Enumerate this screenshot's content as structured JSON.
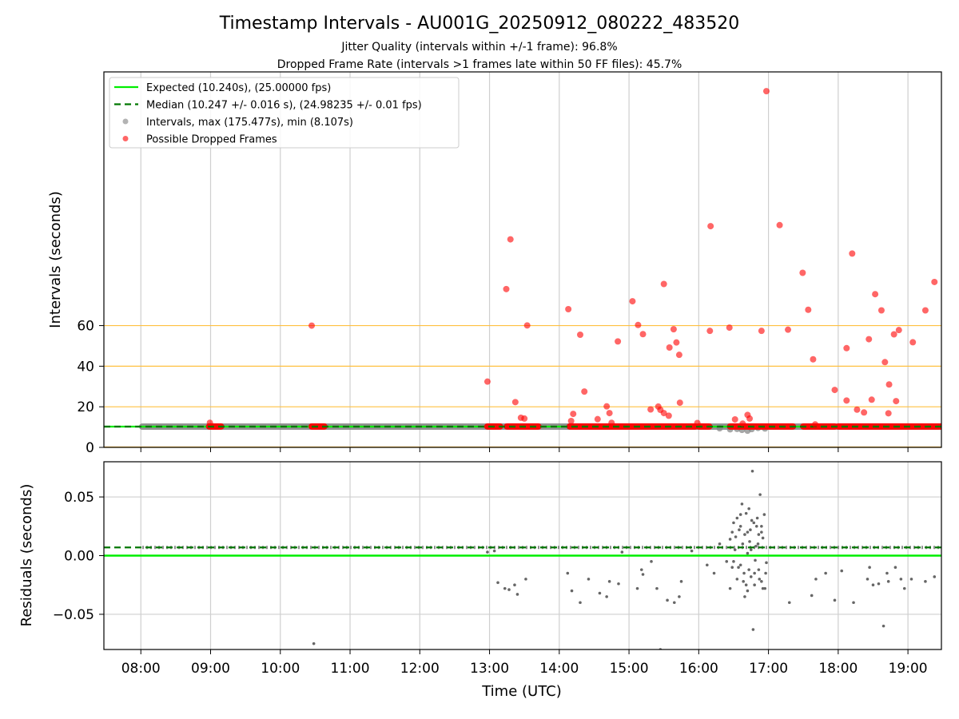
{
  "title": "Timestamp Intervals - AU001G_20250912_080222_483520",
  "subtitle_1": "Jitter Quality (intervals within +/-1 frame): 96.8%",
  "subtitle_2": "Dropped Frame Rate (intervals >1 frames late within 50 FF files): 45.7%",
  "colors": {
    "expected": "#00ee00",
    "median": "#007700",
    "intervals": "#808080",
    "dropped": "#ff0000",
    "threshold": "#ffc040",
    "grid": "#cfcfcf"
  },
  "chart_data": [
    {
      "type": "scatter",
      "xlabel": "",
      "ylabel": "Intervals (seconds)",
      "x_unit": "UTC hours",
      "xlim": [
        7.47,
        19.48
      ],
      "ylim": [
        0,
        185
      ],
      "yticks": [
        0,
        20,
        40,
        60
      ],
      "grid": "vertical",
      "legend_position": "top-left",
      "legend": [
        {
          "key": "expected",
          "label": "Expected (10.240s), (25.00000 fps)"
        },
        {
          "key": "median",
          "label": "Median (10.247 +/- 0.016 s), (24.98235 +/- 0.01 fps)"
        },
        {
          "key": "intervals",
          "label": "Intervals, max (175.477s), min (8.107s)"
        },
        {
          "key": "dropped",
          "label": "Possible Dropped Frames"
        }
      ],
      "expected_value": 10.24,
      "median_value": 10.247,
      "threshold_lines": [
        20,
        40,
        60
      ],
      "interval_band": {
        "x_start": 8.02,
        "x_end": 19.45,
        "value": 10.24
      },
      "interval_scatter": [
        [
          16.3,
          9.4
        ],
        [
          16.45,
          8.9
        ],
        [
          16.55,
          9.1
        ],
        [
          16.62,
          8.6
        ],
        [
          16.7,
          8.2
        ],
        [
          16.76,
          9.0
        ],
        [
          16.95,
          9.3
        ],
        [
          16.85,
          9.6
        ]
      ],
      "dropped_segments": [
        [
          8.98,
          9.15
        ],
        [
          10.45,
          10.63
        ],
        [
          12.97,
          13.15
        ],
        [
          13.25,
          13.7
        ],
        [
          14.15,
          15.95
        ],
        [
          16.0,
          16.15
        ],
        [
          16.45,
          17.35
        ],
        [
          17.5,
          17.95
        ],
        [
          18.0,
          19.48
        ]
      ],
      "dropped_points": [
        [
          8.99,
          12.1
        ],
        [
          10.45,
          60.0
        ],
        [
          12.97,
          32.4
        ],
        [
          13.24,
          78.0
        ],
        [
          13.3,
          102.5
        ],
        [
          13.37,
          22.3
        ],
        [
          13.45,
          14.6
        ],
        [
          13.5,
          14.2
        ],
        [
          13.54,
          60.1
        ],
        [
          14.13,
          68.1
        ],
        [
          14.17,
          13.0
        ],
        [
          14.2,
          16.5
        ],
        [
          14.3,
          55.5
        ],
        [
          14.36,
          27.5
        ],
        [
          14.55,
          13.9
        ],
        [
          14.68,
          20.2
        ],
        [
          14.72,
          16.9
        ],
        [
          14.75,
          12.1
        ],
        [
          14.84,
          52.2
        ],
        [
          15.05,
          72.0
        ],
        [
          15.13,
          60.3
        ],
        [
          15.2,
          55.8
        ],
        [
          15.31,
          18.7
        ],
        [
          15.42,
          20.1
        ],
        [
          15.45,
          18.5
        ],
        [
          15.5,
          16.9
        ],
        [
          15.5,
          80.5
        ],
        [
          15.57,
          15.6
        ],
        [
          15.58,
          49.2
        ],
        [
          15.64,
          58.2
        ],
        [
          15.68,
          51.7
        ],
        [
          15.72,
          45.6
        ],
        [
          15.73,
          22.0
        ],
        [
          15.98,
          12.0
        ],
        [
          16.16,
          57.4
        ],
        [
          16.17,
          109.0
        ],
        [
          16.44,
          59.0
        ],
        [
          16.52,
          13.8
        ],
        [
          16.63,
          11.7
        ],
        [
          16.7,
          16.0
        ],
        [
          16.73,
          14.2
        ],
        [
          16.9,
          57.4
        ],
        [
          16.97,
          175.5
        ],
        [
          17.16,
          109.5
        ],
        [
          17.28,
          58.0
        ],
        [
          17.49,
          86.0
        ],
        [
          17.57,
          67.8
        ],
        [
          17.64,
          43.4
        ],
        [
          17.67,
          11.3
        ],
        [
          17.95,
          28.3
        ],
        [
          18.12,
          48.9
        ],
        [
          18.12,
          23.1
        ],
        [
          18.2,
          95.5
        ],
        [
          18.27,
          18.6
        ],
        [
          18.37,
          17.2
        ],
        [
          18.44,
          53.3
        ],
        [
          18.48,
          23.5
        ],
        [
          18.53,
          75.5
        ],
        [
          18.62,
          67.5
        ],
        [
          18.67,
          42.0
        ],
        [
          18.72,
          16.8
        ],
        [
          18.73,
          31.0
        ],
        [
          18.8,
          55.7
        ],
        [
          18.83,
          22.8
        ],
        [
          18.87,
          57.8
        ],
        [
          19.07,
          51.8
        ],
        [
          19.25,
          67.5
        ],
        [
          19.38,
          81.5
        ]
      ]
    },
    {
      "type": "scatter",
      "xlabel": "Time (UTC)",
      "ylabel": "Residuals (seconds)",
      "xlim": [
        7.47,
        19.48
      ],
      "ylim": [
        -0.08,
        0.08
      ],
      "yticks": [
        -0.05,
        0.0,
        0.05
      ],
      "ytick_labels": [
        "−0.05",
        "0.00",
        "0.05"
      ],
      "xticks": [
        8,
        9,
        10,
        11,
        12,
        13,
        14,
        15,
        16,
        17,
        18,
        19
      ],
      "xtick_labels": [
        "08:00",
        "09:00",
        "10:00",
        "11:00",
        "12:00",
        "13:00",
        "14:00",
        "15:00",
        "16:00",
        "17:00",
        "18:00",
        "19:00"
      ],
      "grid": "both",
      "expected_value": 0.0,
      "median_value": 0.007,
      "residual_band": {
        "x_start": 8.02,
        "x_end": 19.45,
        "value": 0.007
      },
      "residual_points": [
        [
          10.48,
          -0.075
        ],
        [
          12.97,
          0.003
        ],
        [
          13.12,
          -0.023
        ],
        [
          13.22,
          -0.028
        ],
        [
          13.28,
          -0.029
        ],
        [
          13.36,
          -0.025
        ],
        [
          13.4,
          -0.033
        ],
        [
          13.52,
          -0.02
        ],
        [
          13.07,
          0.004
        ],
        [
          14.12,
          -0.015
        ],
        [
          14.18,
          -0.03
        ],
        [
          14.3,
          -0.04
        ],
        [
          14.42,
          -0.02
        ],
        [
          14.58,
          -0.032
        ],
        [
          14.68,
          -0.035
        ],
        [
          14.72,
          -0.022
        ],
        [
          14.85,
          -0.024
        ],
        [
          14.9,
          0.003
        ],
        [
          15.12,
          -0.028
        ],
        [
          15.2,
          -0.016
        ],
        [
          15.32,
          -0.005
        ],
        [
          15.45,
          -0.08
        ],
        [
          15.55,
          -0.038
        ],
        [
          15.65,
          -0.04
        ],
        [
          15.72,
          -0.035
        ],
        [
          15.75,
          -0.022
        ],
        [
          15.9,
          0.004
        ],
        [
          15.4,
          -0.028
        ],
        [
          15.18,
          -0.012
        ],
        [
          16.12,
          -0.008
        ],
        [
          16.22,
          -0.015
        ],
        [
          16.3,
          0.01
        ],
        [
          16.4,
          -0.005
        ],
        [
          16.45,
          0.014
        ],
        [
          16.48,
          0.02
        ],
        [
          16.5,
          0.028
        ],
        [
          16.52,
          0.005
        ],
        [
          16.55,
          0.032
        ],
        [
          16.57,
          -0.01
        ],
        [
          16.6,
          0.025
        ],
        [
          16.62,
          0.044
        ],
        [
          16.64,
          -0.022
        ],
        [
          16.66,
          0.018
        ],
        [
          16.68,
          0.036
        ],
        [
          16.7,
          -0.03
        ],
        [
          16.72,
          0.04
        ],
        [
          16.73,
          0.012
        ],
        [
          16.75,
          -0.018
        ],
        [
          16.77,
          0.072
        ],
        [
          16.79,
          0.028
        ],
        [
          16.8,
          -0.025
        ],
        [
          16.82,
          0.008
        ],
        [
          16.84,
          0.032
        ],
        [
          16.86,
          -0.012
        ],
        [
          16.88,
          0.052
        ],
        [
          16.9,
          0.02
        ],
        [
          16.92,
          -0.028
        ],
        [
          16.94,
          0.035
        ],
        [
          16.96,
          -0.015
        ],
        [
          16.55,
          -0.02
        ],
        [
          16.6,
          -0.008
        ],
        [
          16.66,
          -0.035
        ],
        [
          16.7,
          0.002
        ],
        [
          16.74,
          0.022
        ],
        [
          16.78,
          -0.063
        ],
        [
          16.83,
          0.025
        ],
        [
          16.87,
          -0.02
        ],
        [
          16.92,
          0.015
        ],
        [
          16.97,
          -0.006
        ],
        [
          16.48,
          -0.01
        ],
        [
          16.53,
          0.016
        ],
        [
          16.58,
          0.022
        ],
        [
          16.63,
          0.01
        ],
        [
          16.68,
          -0.025
        ],
        [
          16.72,
          -0.012
        ],
        [
          16.76,
          0.03
        ],
        [
          16.81,
          -0.004
        ],
        [
          16.86,
          0.018
        ],
        [
          16.9,
          -0.022
        ],
        [
          16.45,
          -0.028
        ],
        [
          16.5,
          -0.005
        ],
        [
          16.6,
          0.035
        ],
        [
          16.65,
          -0.015
        ],
        [
          16.7,
          0.02
        ],
        [
          16.75,
          0.005
        ],
        [
          16.8,
          -0.015
        ],
        [
          16.85,
          0.01
        ],
        [
          16.9,
          0.025
        ],
        [
          16.95,
          -0.028
        ],
        [
          17.3,
          -0.04
        ],
        [
          17.62,
          -0.034
        ],
        [
          17.68,
          -0.02
        ],
        [
          17.82,
          -0.015
        ],
        [
          17.95,
          -0.038
        ],
        [
          18.05,
          -0.013
        ],
        [
          18.22,
          -0.04
        ],
        [
          18.42,
          -0.02
        ],
        [
          18.45,
          -0.01
        ],
        [
          18.5,
          -0.025
        ],
        [
          18.58,
          -0.024
        ],
        [
          18.65,
          -0.06
        ],
        [
          18.7,
          -0.015
        ],
        [
          18.72,
          -0.022
        ],
        [
          18.82,
          -0.01
        ],
        [
          18.9,
          -0.02
        ],
        [
          18.95,
          -0.028
        ],
        [
          19.05,
          -0.02
        ],
        [
          19.25,
          -0.022
        ],
        [
          19.38,
          -0.018
        ]
      ]
    }
  ]
}
